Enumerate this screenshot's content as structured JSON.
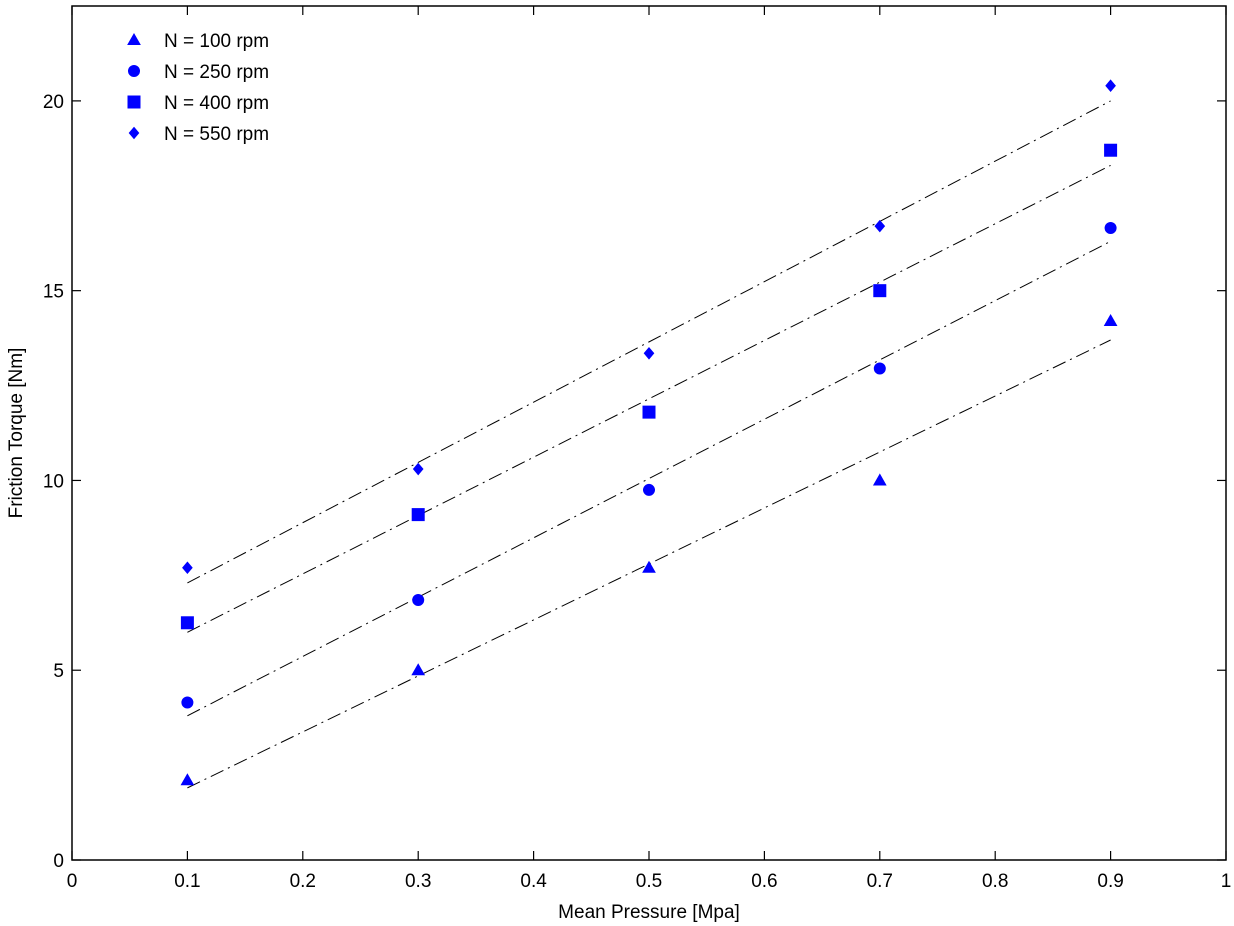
{
  "chart_data": {
    "type": "scatter",
    "xlabel": "Mean Pressure [Mpa]",
    "ylabel": "Friction Torque [Nm]",
    "xlim": [
      0,
      1
    ],
    "ylim": [
      0,
      22.5
    ],
    "xticks": [
      0,
      0.1,
      0.2,
      0.3,
      0.4,
      0.5,
      0.6,
      0.7,
      0.8,
      0.9,
      1
    ],
    "xtick_labels": [
      "0",
      "0.1",
      "0.2",
      "0.3",
      "0.4",
      "0.5",
      "0.6",
      "0.7",
      "0.8",
      "0.9",
      "1"
    ],
    "yticks": [
      0,
      5,
      10,
      15,
      20
    ],
    "ytick_labels": [
      "0",
      "5",
      "10",
      "15",
      "20"
    ],
    "grid": false,
    "legend_position": "top-left",
    "marker_color": "#0000ff",
    "fit_line_color": "#000000",
    "fit_line_style": "dash-dot",
    "series": [
      {
        "name": "N = 100 rpm",
        "marker": "triangle",
        "x": [
          0.1,
          0.3,
          0.5,
          0.7,
          0.9
        ],
        "y": [
          2.1,
          5.0,
          7.7,
          10.0,
          14.2
        ],
        "fit": {
          "x": [
            0.1,
            0.9
          ],
          "y": [
            1.9,
            13.7
          ]
        }
      },
      {
        "name": "N = 250 rpm",
        "marker": "circle",
        "x": [
          0.1,
          0.3,
          0.5,
          0.7,
          0.9
        ],
        "y": [
          4.15,
          6.85,
          9.75,
          12.95,
          16.65
        ],
        "fit": {
          "x": [
            0.1,
            0.9
          ],
          "y": [
            3.8,
            16.3
          ]
        }
      },
      {
        "name": "N = 400 rpm",
        "marker": "square",
        "x": [
          0.1,
          0.3,
          0.5,
          0.7,
          0.9
        ],
        "y": [
          6.25,
          9.1,
          11.8,
          15.0,
          18.7
        ],
        "fit": {
          "x": [
            0.1,
            0.9
          ],
          "y": [
            6.0,
            18.3
          ]
        }
      },
      {
        "name": "N = 550 rpm",
        "marker": "diamond",
        "x": [
          0.1,
          0.3,
          0.5,
          0.7,
          0.9
        ],
        "y": [
          7.7,
          10.3,
          13.35,
          16.7,
          20.4
        ],
        "fit": {
          "x": [
            0.1,
            0.9
          ],
          "y": [
            7.3,
            20.0
          ]
        }
      }
    ]
  }
}
